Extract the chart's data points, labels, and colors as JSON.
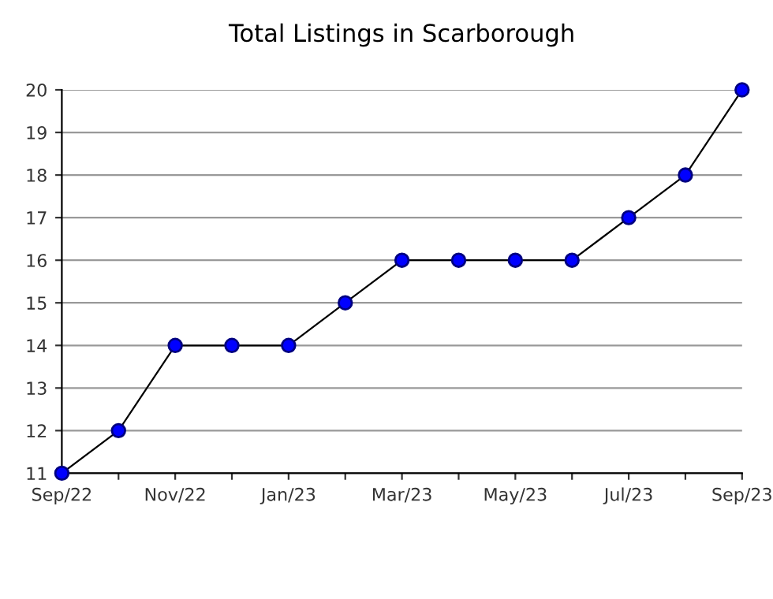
{
  "chart_data": {
    "type": "line",
    "title": "Total Listings in Scarborough",
    "categories": [
      "Sep/22",
      null,
      "Nov/22",
      null,
      "Jan/23",
      null,
      "Mar/23",
      null,
      "May/23",
      null,
      "Jul/23",
      null,
      "Sep/23"
    ],
    "series": [
      {
        "color": "#0000ff",
        "values": [
          11,
          12,
          14,
          14,
          14,
          15,
          16,
          16,
          16,
          16,
          17,
          18,
          20
        ]
      }
    ],
    "ylim": [
      11,
      20
    ],
    "yticks": [
      11,
      12,
      13,
      14,
      15,
      16,
      17,
      18,
      19,
      20
    ],
    "grid": "y",
    "marker": "circle",
    "line_style": "solid",
    "legend": false
  }
}
